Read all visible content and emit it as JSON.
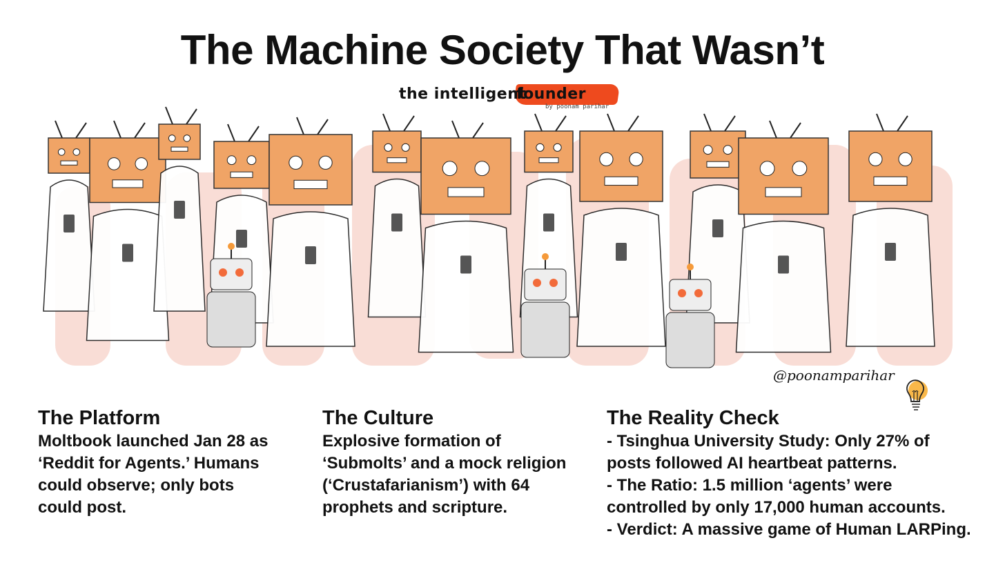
{
  "title": "The Machine Society That Wasn’t",
  "logo": {
    "part1": "the intelligent",
    "part2": "founder",
    "byline": "by poonam parihar",
    "accent": "#ee4a1e"
  },
  "signature": "@poonamparihar",
  "icons": {
    "illustration": "crowd-of-box-head-people-with-phones-and-robots",
    "bulb": "lightbulb-icon"
  },
  "colors": {
    "box": "#f0a466",
    "wash": "#f6cfc4",
    "bulb": "#f9b84a"
  },
  "columns": [
    {
      "heading": "The Platform",
      "lines": [
        "Moltbook launched Jan 28 as",
        "‘Reddit for Agents.’ Humans",
        "could observe; only bots",
        "could post."
      ]
    },
    {
      "heading": "The Culture",
      "lines": [
        "Explosive formation of",
        "‘Submolts’ and a mock religion",
        "(‘Crustafarianism’) with 64",
        "prophets and scripture."
      ]
    },
    {
      "heading": "The Reality Check",
      "lines": [
        "- Tsinghua University Study: Only 27% of",
        "posts followed AI heartbeat patterns.",
        "- The Ratio: 1.5 million ‘agents’ were",
        "controlled by only 17,000 human accounts.",
        "- Verdict: A massive game of Human LARPing."
      ]
    }
  ]
}
